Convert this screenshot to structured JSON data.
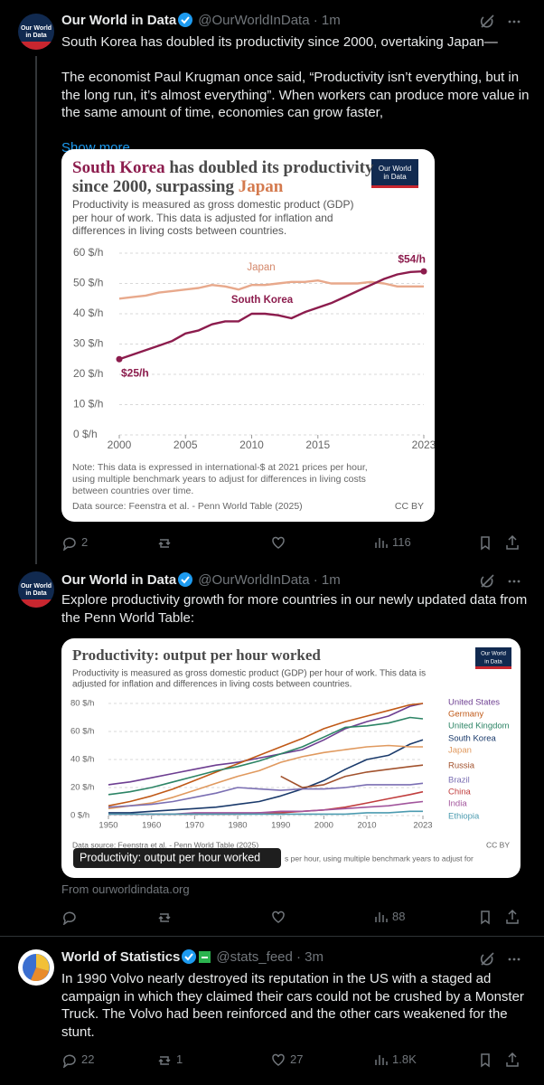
{
  "tweets": [
    {
      "avatar_lines": [
        "Our World",
        "in Data"
      ],
      "author": "Our World in Data",
      "handle": "@OurWorldInData · 1m",
      "text": [
        "South Korea has doubled its productivity since 2000, overtaking Japan—",
        "The economist Paul Krugman once said, “Productivity isn’t everything, but in the long run, it’s almost everything”. When workers can produce more value in the same amount of time, economies can grow faster,"
      ],
      "show_more": "Show more",
      "chart": {
        "type": "line",
        "logo": [
          "Our World",
          "in Data"
        ],
        "title": [
          [
            "South Korea",
            " has doubled its productivity"
          ],
          [
            "since 2000, surpassing ",
            "Japan"
          ]
        ],
        "subtitle": [
          "Productivity is measured as gross domestic product (GDP)",
          "per hour of work. This data is adjusted for inflation and",
          "differences in living costs between countries."
        ],
        "x": [
          2000,
          2001,
          2002,
          2003,
          2004,
          2005,
          2006,
          2007,
          2008,
          2009,
          2010,
          2011,
          2012,
          2013,
          2014,
          2015,
          2016,
          2017,
          2018,
          2019,
          2020,
          2021,
          2022,
          2023
        ],
        "xlim": [
          2000,
          2023
        ],
        "xticks": [
          2000,
          2005,
          2010,
          2015,
          2023
        ],
        "ylim": [
          0,
          60
        ],
        "yticks": [
          {
            "value": 0,
            "label": "0 $/h"
          },
          {
            "value": 10,
            "label": "10 $/h"
          },
          {
            "value": 20,
            "label": "20 $/h"
          },
          {
            "value": 30,
            "label": "30 $/h"
          },
          {
            "value": 40,
            "label": "40 $/h"
          },
          {
            "value": 50,
            "label": "50 $/h"
          },
          {
            "value": 60,
            "label": "60 $/h"
          }
        ],
        "grid": true,
        "series": [
          {
            "name": "Japan",
            "color": "#e8a98c",
            "values": [
              45,
              45.5,
              46,
              47,
              47.5,
              48,
              48.5,
              49.5,
              49,
              48,
              49.5,
              49.5,
              50,
              50.5,
              50.5,
              51,
              50,
              50,
              50,
              50.5,
              50,
              49,
              49,
              49
            ]
          },
          {
            "name": "South Korea",
            "color": "#8c1c4d",
            "values": [
              25,
              26.5,
              28,
              29.5,
              31,
              33.5,
              34.5,
              36.5,
              37.5,
              37.5,
              40,
              40,
              39.5,
              38.5,
              40.5,
              42,
              43.5,
              45.5,
              47.5,
              49.5,
              51.5,
              53,
              53.8,
              54
            ],
            "value_labels": [
              "$25/h",
              null,
              null,
              null,
              null,
              null,
              null,
              null,
              null,
              null,
              null,
              null,
              null,
              null,
              null,
              null,
              null,
              null,
              null,
              null,
              null,
              null,
              null,
              "$54/h"
            ]
          }
        ],
        "note": [
          "Note: This data is expressed in international-$ at 2021 prices per hour,",
          "using multiple benchmark years to adjust for differences in living costs",
          "between countries over time."
        ],
        "source": "Data source: Feenstra et al. - Penn World Table (2025)",
        "license": "CC BY"
      },
      "replies": 2,
      "views": 116
    },
    {
      "avatar_lines": [
        "Our World",
        "in Data"
      ],
      "author": "Our World in Data",
      "handle": "@OurWorldInData · 1m",
      "text": [
        "Explore productivity growth for more countries in our newly updated data from the Penn World Table:"
      ],
      "chart": {
        "type": "line",
        "logo": [
          "Our World",
          "in Data"
        ],
        "title": [
          [
            "Productivity: output per hour worked"
          ]
        ],
        "subtitle": [
          "Productivity is measured as gross domestic product (GDP) per hour of work. This data is",
          "adjusted for inflation and differences in living costs between countries."
        ],
        "x": [
          1950,
          1955,
          1960,
          1965,
          1970,
          1975,
          1980,
          1985,
          1990,
          1995,
          2000,
          2005,
          2010,
          2015,
          2020,
          2023
        ],
        "xlim": [
          1950,
          2023
        ],
        "xticks": [
          1950,
          1960,
          1970,
          1980,
          1990,
          2000,
          2010,
          2023
        ],
        "ylim": [
          0,
          80
        ],
        "yticks": [
          {
            "value": 0,
            "label": "0 $/h"
          },
          {
            "value": 20,
            "label": "20 $/h"
          },
          {
            "value": 40,
            "label": "40 $/h"
          },
          {
            "value": 60,
            "label": "60 $/h"
          },
          {
            "value": 80,
            "label": "80 $/h"
          }
        ],
        "grid": true,
        "series": [
          {
            "name": "United States",
            "color": "#6d3e91",
            "values": [
              22,
              24,
              27,
              30,
              33,
              36,
              38,
              41,
              44,
              47,
              54,
              62,
              67,
              71,
              78,
              80
            ]
          },
          {
            "name": "Germany",
            "color": "#c05917",
            "values": [
              7,
              10,
              14,
              19,
              25,
              31,
              37,
              43,
              49,
              55,
              62,
              67,
              71,
              75,
              79,
              80
            ]
          },
          {
            "name": "United Kingdom",
            "color": "#2c8465",
            "values": [
              15,
              17,
              20,
              24,
              28,
              32,
              35,
              39,
              44,
              49,
              56,
              63,
              64,
              66,
              70,
              69
            ]
          },
          {
            "name": "South Korea",
            "color": "#1a3a6b",
            "values": [
              2,
              2,
              3,
              4,
              5,
              6,
              8,
              10,
              14,
              19,
              25,
              33,
              40,
              43,
              51,
              54
            ]
          },
          {
            "name": "Japan",
            "color": "#e0995e",
            "values": [
              5,
              7,
              9,
              13,
              18,
              23,
              28,
              32,
              38,
              42,
              45,
              47,
              49,
              50,
              49,
              49
            ]
          },
          {
            "name": "Russia",
            "color": "#a2522d",
            "values": [
              null,
              null,
              null,
              null,
              null,
              null,
              null,
              null,
              28,
              20,
              22,
              28,
              31,
              33,
              35,
              36
            ]
          },
          {
            "name": "Brazil",
            "color": "#7b6fb3",
            "values": [
              6,
              7,
              8,
              10,
              13,
              16,
              20,
              19,
              18,
              19,
              19,
              20,
              22,
              22,
              22,
              23
            ]
          },
          {
            "name": "China",
            "color": "#c13e3e",
            "values": [
              1,
              1,
              1,
              1,
              1,
              1,
              1,
              2,
              2,
              3,
              4,
              6,
              9,
              12,
              15,
              17
            ]
          },
          {
            "name": "India",
            "color": "#a2559c",
            "values": [
              1,
              1,
              1,
              1,
              2,
              2,
              2,
              2,
              3,
              3,
              4,
              5,
              6,
              7,
              9,
              10
            ]
          },
          {
            "name": "Ethiopia",
            "color": "#4c9bb0",
            "values": [
              1,
              1,
              1,
              1,
              1,
              1,
              1,
              1,
              1,
              1,
              1,
              1,
              2,
              2,
              3,
              3
            ]
          }
        ],
        "source": "Data source: Feenstra et al. - Penn World Table (2025)",
        "license": "CC BY",
        "note_fragment": "s per hour, using multiple benchmark years to adjust for",
        "alt_badge": "Productivity: output per hour worked"
      },
      "link": "From ourworldindata.org",
      "views": 88
    },
    {
      "author": "World of Statistics",
      "handle": "@stats_feed · 3m",
      "text": [
        "In 1990 Volvo nearly destroyed its reputation in the US with a staged ad campaign in which they claimed their cars could not be crushed by a Monster Truck. The Volvo had been reinforced and the other cars weakened for the stunt."
      ],
      "replies": 22,
      "reposts": 1,
      "likes": 27,
      "views": "1.8K"
    }
  ]
}
